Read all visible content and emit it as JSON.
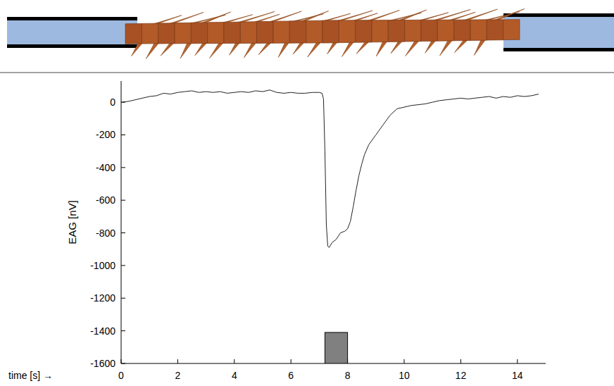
{
  "chart_data": {
    "type": "line",
    "x_label": "time [s] →",
    "y_label": "EAG [nV]",
    "xlim": [
      0,
      15
    ],
    "ylim": [
      -1600,
      130
    ],
    "xticks": [
      0,
      2,
      4,
      6,
      8,
      10,
      12,
      14
    ],
    "yticks": [
      0,
      -200,
      -400,
      -600,
      -800,
      -1000,
      -1200,
      -1400,
      -1600
    ],
    "grid": false,
    "x": [
      0,
      0.25,
      0.5,
      0.75,
      1,
      1.25,
      1.5,
      1.75,
      2,
      2.25,
      2.5,
      2.75,
      3,
      3.25,
      3.5,
      3.75,
      4,
      4.25,
      4.5,
      4.75,
      5,
      5.25,
      5.5,
      5.75,
      6,
      6.25,
      6.5,
      6.75,
      7,
      7.1,
      7.15,
      7.2,
      7.25,
      7.3,
      7.35,
      7.45,
      7.6,
      7.75,
      7.9,
      8.0,
      8.1,
      8.2,
      8.3,
      8.4,
      8.5,
      8.6,
      8.75,
      9,
      9.25,
      9.5,
      9.75,
      10,
      10.25,
      10.5,
      10.75,
      11,
      11.25,
      11.5,
      11.75,
      12,
      12.25,
      12.5,
      12.75,
      13,
      13.25,
      13.5,
      13.75,
      14,
      14.25,
      14.5,
      14.75
    ],
    "series": [
      {
        "name": "EAG",
        "color": "#222222",
        "values": [
          0,
          5,
          15,
          25,
          35,
          40,
          55,
          50,
          60,
          65,
          70,
          60,
          65,
          60,
          65,
          55,
          60,
          65,
          60,
          70,
          65,
          75,
          60,
          55,
          60,
          55,
          55,
          60,
          60,
          55,
          20,
          -300,
          -750,
          -880,
          -890,
          -860,
          -840,
          -800,
          -790,
          -775,
          -730,
          -640,
          -540,
          -450,
          -380,
          -320,
          -260,
          -200,
          -140,
          -80,
          -40,
          -30,
          -20,
          -15,
          -10,
          0,
          10,
          15,
          20,
          25,
          20,
          25,
          30,
          35,
          25,
          35,
          30,
          40,
          35,
          40,
          50
        ]
      }
    ],
    "stimulus": {
      "x": [
        7.2,
        8.0
      ],
      "y": [
        -1600,
        -1410
      ],
      "color": "#808080"
    }
  }
}
